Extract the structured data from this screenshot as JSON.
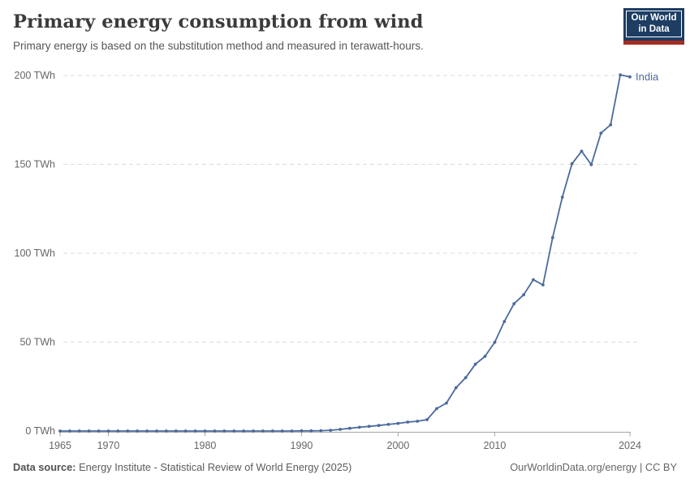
{
  "header": {
    "title": "Primary energy consumption from wind",
    "subtitle": "Primary energy is based on the substitution method and measured in terawatt-hours.",
    "logo": {
      "line1": "Our World",
      "line2": "in Data"
    }
  },
  "footer": {
    "source_label": "Data source:",
    "source_text": " Energy Institute - Statistical Review of World Energy (2025)",
    "rights": "OurWorldinData.org/energy | CC BY"
  },
  "colors": {
    "series_blue": "#4C6A9C",
    "gridline": "#dcdcdc",
    "axis": "#a5a5a5",
    "tick_text": "#666666",
    "logo_navy": "#1d3d63",
    "logo_red": "#a62b21"
  },
  "chart_data": {
    "type": "line",
    "title": "Primary energy consumption from wind",
    "unit": "TWh",
    "xlabel": "",
    "ylabel": "TWh",
    "xlim": [
      1965,
      2024
    ],
    "ylim": [
      0,
      200
    ],
    "grid": "horizontal-dashed",
    "legend_position": "end-of-line",
    "x_ticks": [
      {
        "value": 1965,
        "label": "1965"
      },
      {
        "value": 1970,
        "label": "1970"
      },
      {
        "value": 1980,
        "label": "1980"
      },
      {
        "value": 1990,
        "label": "1990"
      },
      {
        "value": 2000,
        "label": "2000"
      },
      {
        "value": 2010,
        "label": "2010"
      },
      {
        "value": 2024,
        "label": "2024"
      }
    ],
    "y_ticks": [
      {
        "value": 0,
        "label": "0 TWh"
      },
      {
        "value": 50,
        "label": "50 TWh"
      },
      {
        "value": 100,
        "label": "100 TWh"
      },
      {
        "value": 150,
        "label": "150 TWh"
      },
      {
        "value": 200,
        "label": "200 TWh"
      }
    ],
    "x": [
      1965,
      1966,
      1967,
      1968,
      1969,
      1970,
      1971,
      1972,
      1973,
      1974,
      1975,
      1976,
      1977,
      1978,
      1979,
      1980,
      1981,
      1982,
      1983,
      1984,
      1985,
      1986,
      1987,
      1988,
      1989,
      1990,
      1991,
      1992,
      1993,
      1994,
      1995,
      1996,
      1997,
      1998,
      1999,
      2000,
      2001,
      2002,
      2003,
      2004,
      2005,
      2006,
      2007,
      2008,
      2009,
      2010,
      2011,
      2012,
      2013,
      2014,
      2015,
      2016,
      2017,
      2018,
      2019,
      2020,
      2021,
      2022,
      2023,
      2024
    ],
    "series": [
      {
        "name": "India",
        "color": "#4C6A9C",
        "values": [
          0,
          0,
          0,
          0,
          0,
          0,
          0,
          0,
          0,
          0,
          0,
          0,
          0,
          0,
          0,
          0,
          0,
          0,
          0,
          0,
          0,
          0,
          0,
          0,
          0,
          0.1,
          0.1,
          0.2,
          0.4,
          0.9,
          1.5,
          2.1,
          2.6,
          3.1,
          3.7,
          4.3,
          5.0,
          5.5,
          6.4,
          12.6,
          15.7,
          24.4,
          30.0,
          37.6,
          42.0,
          49.9,
          61.6,
          71.6,
          76.6,
          85.1,
          82.2,
          108.8,
          131.5,
          150.3,
          157.4,
          149.8,
          167.6,
          172.3,
          200.3,
          199.2
        ]
      }
    ]
  }
}
